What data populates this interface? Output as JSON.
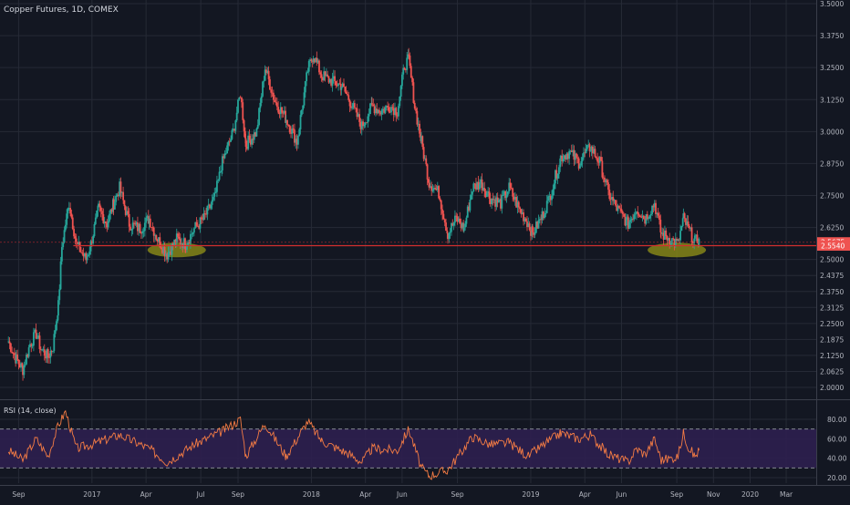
{
  "colors": {
    "background": "#131722",
    "grid": "#262a36",
    "text": "#b2b5be",
    "up": "#26a69a",
    "down": "#ef5350",
    "support": "#d32f2f",
    "ellipse": "#8c8c18",
    "rsi": "#f57c44",
    "rsi_band": "#2e1f4f",
    "price_badge": "#ef5350"
  },
  "chart_data": [
    {
      "type": "candlestick",
      "title": "Copper Futures, 1D, COMEX",
      "y_ticks": [
        "3.5000",
        "3.3750",
        "3.2500",
        "3.1250",
        "3.0000",
        "2.8750",
        "2.7500",
        "2.6250",
        "2.5000",
        "2.4375",
        "2.3750",
        "2.3125",
        "2.2500",
        "2.1875",
        "2.1250",
        "2.0625",
        "2.0000"
      ],
      "x_ticks": [
        "Sep",
        "2017",
        "Apr",
        "Jul",
        "Sep",
        "2018",
        "Apr",
        "Jun",
        "Sep",
        "2019",
        "Apr",
        "Jun",
        "Sep",
        "Nov",
        "2020",
        "Mar"
      ],
      "last_price": "2.5675",
      "support_level": "2.5540",
      "series_keypoints": [
        [
          "2016-08-15",
          2.18
        ],
        [
          "2016-08-28",
          2.11
        ],
        [
          "2016-09-08",
          2.07
        ],
        [
          "2016-09-20",
          2.17
        ],
        [
          "2016-09-30",
          2.21
        ],
        [
          "2016-10-08",
          2.15
        ],
        [
          "2016-10-20",
          2.12
        ],
        [
          "2016-10-28",
          2.16
        ],
        [
          "2016-11-06",
          2.32
        ],
        [
          "2016-11-12",
          2.55
        ],
        [
          "2016-11-18",
          2.64
        ],
        [
          "2016-11-24",
          2.72
        ],
        [
          "2016-12-06",
          2.56
        ],
        [
          "2016-12-22",
          2.5
        ],
        [
          "2016-12-30",
          2.56
        ],
        [
          "2017-01-12",
          2.7
        ],
        [
          "2017-01-26",
          2.64
        ],
        [
          "2017-02-06",
          2.72
        ],
        [
          "2017-02-16",
          2.78
        ],
        [
          "2017-03-04",
          2.64
        ],
        [
          "2017-03-22",
          2.62
        ],
        [
          "2017-04-06",
          2.66
        ],
        [
          "2017-04-20",
          2.58
        ],
        [
          "2017-05-06",
          2.52
        ],
        [
          "2017-05-22",
          2.58
        ],
        [
          "2017-06-06",
          2.56
        ],
        [
          "2017-06-20",
          2.62
        ],
        [
          "2017-07-06",
          2.66
        ],
        [
          "2017-07-24",
          2.74
        ],
        [
          "2017-08-06",
          2.88
        ],
        [
          "2017-08-24",
          3.0
        ],
        [
          "2017-09-05",
          3.15
        ],
        [
          "2017-09-14",
          2.95
        ],
        [
          "2017-10-02",
          3.0
        ],
        [
          "2017-10-16",
          3.25
        ],
        [
          "2017-11-01",
          3.12
        ],
        [
          "2017-11-20",
          3.05
        ],
        [
          "2017-12-08",
          2.96
        ],
        [
          "2017-12-26",
          3.24
        ],
        [
          "2018-01-04",
          3.3
        ],
        [
          "2018-01-18",
          3.22
        ],
        [
          "2018-02-01",
          3.2
        ],
        [
          "2018-02-20",
          3.18
        ],
        [
          "2018-03-06",
          3.12
        ],
        [
          "2018-03-26",
          3.02
        ],
        [
          "2018-04-12",
          3.1
        ],
        [
          "2018-04-26",
          3.08
        ],
        [
          "2018-05-12",
          3.1
        ],
        [
          "2018-05-24",
          3.08
        ],
        [
          "2018-06-05",
          3.26
        ],
        [
          "2018-06-12",
          3.28
        ],
        [
          "2018-06-22",
          3.1
        ],
        [
          "2018-07-03",
          2.96
        ],
        [
          "2018-07-16",
          2.8
        ],
        [
          "2018-08-01",
          2.76
        ],
        [
          "2018-08-16",
          2.6
        ],
        [
          "2018-08-30",
          2.66
        ],
        [
          "2018-09-12",
          2.62
        ],
        [
          "2018-09-26",
          2.78
        ],
        [
          "2018-10-10",
          2.8
        ],
        [
          "2018-10-26",
          2.74
        ],
        [
          "2018-11-12",
          2.72
        ],
        [
          "2018-11-26",
          2.78
        ],
        [
          "2018-12-12",
          2.7
        ],
        [
          "2018-12-28",
          2.64
        ],
        [
          "2019-01-04",
          2.6
        ],
        [
          "2019-01-18",
          2.66
        ],
        [
          "2019-02-01",
          2.74
        ],
        [
          "2019-02-20",
          2.9
        ],
        [
          "2019-03-06",
          2.92
        ],
        [
          "2019-03-22",
          2.88
        ],
        [
          "2019-04-10",
          2.94
        ],
        [
          "2019-04-26",
          2.88
        ],
        [
          "2019-05-10",
          2.76
        ],
        [
          "2019-05-24",
          2.7
        ],
        [
          "2019-06-12",
          2.64
        ],
        [
          "2019-06-26",
          2.7
        ],
        [
          "2019-07-10",
          2.66
        ],
        [
          "2019-07-26",
          2.72
        ],
        [
          "2019-08-06",
          2.6
        ],
        [
          "2019-08-22",
          2.58
        ],
        [
          "2019-09-03",
          2.56
        ],
        [
          "2019-09-12",
          2.66
        ],
        [
          "2019-09-20",
          2.62
        ],
        [
          "2019-10-01",
          2.57
        ],
        [
          "2019-10-08",
          2.58
        ]
      ]
    },
    {
      "type": "line",
      "title": "RSI (14, close)",
      "y_ticks": [
        "80.00",
        "60.00",
        "40.00",
        "20.00"
      ],
      "overbought": 70,
      "oversold": 30,
      "series_keypoints": [
        [
          "2016-08-15",
          48
        ],
        [
          "2016-09-08",
          38
        ],
        [
          "2016-09-30",
          60
        ],
        [
          "2016-10-20",
          42
        ],
        [
          "2016-11-06",
          74
        ],
        [
          "2016-11-18",
          88
        ],
        [
          "2016-12-06",
          50
        ],
        [
          "2016-12-30",
          54
        ],
        [
          "2017-02-16",
          64
        ],
        [
          "2017-04-06",
          50
        ],
        [
          "2017-05-06",
          36
        ],
        [
          "2017-06-20",
          54
        ],
        [
          "2017-08-06",
          68
        ],
        [
          "2017-09-05",
          80
        ],
        [
          "2017-09-14",
          42
        ],
        [
          "2017-10-16",
          76
        ],
        [
          "2017-11-20",
          42
        ],
        [
          "2017-12-26",
          78
        ],
        [
          "2018-01-18",
          58
        ],
        [
          "2018-03-06",
          44
        ],
        [
          "2018-03-26",
          36
        ],
        [
          "2018-04-12",
          50
        ],
        [
          "2018-05-24",
          48
        ],
        [
          "2018-06-12",
          70
        ],
        [
          "2018-07-03",
          30
        ],
        [
          "2018-07-16",
          22
        ],
        [
          "2018-08-16",
          28
        ],
        [
          "2018-09-26",
          62
        ],
        [
          "2018-10-26",
          54
        ],
        [
          "2018-11-26",
          56
        ],
        [
          "2018-12-28",
          42
        ],
        [
          "2019-01-18",
          52
        ],
        [
          "2019-02-20",
          66
        ],
        [
          "2019-03-22",
          60
        ],
        [
          "2019-04-10",
          64
        ],
        [
          "2019-05-10",
          44
        ],
        [
          "2019-06-12",
          36
        ],
        [
          "2019-06-26",
          50
        ],
        [
          "2019-07-10",
          44
        ],
        [
          "2019-07-26",
          60
        ],
        [
          "2019-08-06",
          38
        ],
        [
          "2019-08-22",
          40
        ],
        [
          "2019-09-03",
          42
        ],
        [
          "2019-09-12",
          66
        ],
        [
          "2019-09-20",
          52
        ],
        [
          "2019-10-01",
          42
        ],
        [
          "2019-10-08",
          48
        ]
      ]
    }
  ]
}
